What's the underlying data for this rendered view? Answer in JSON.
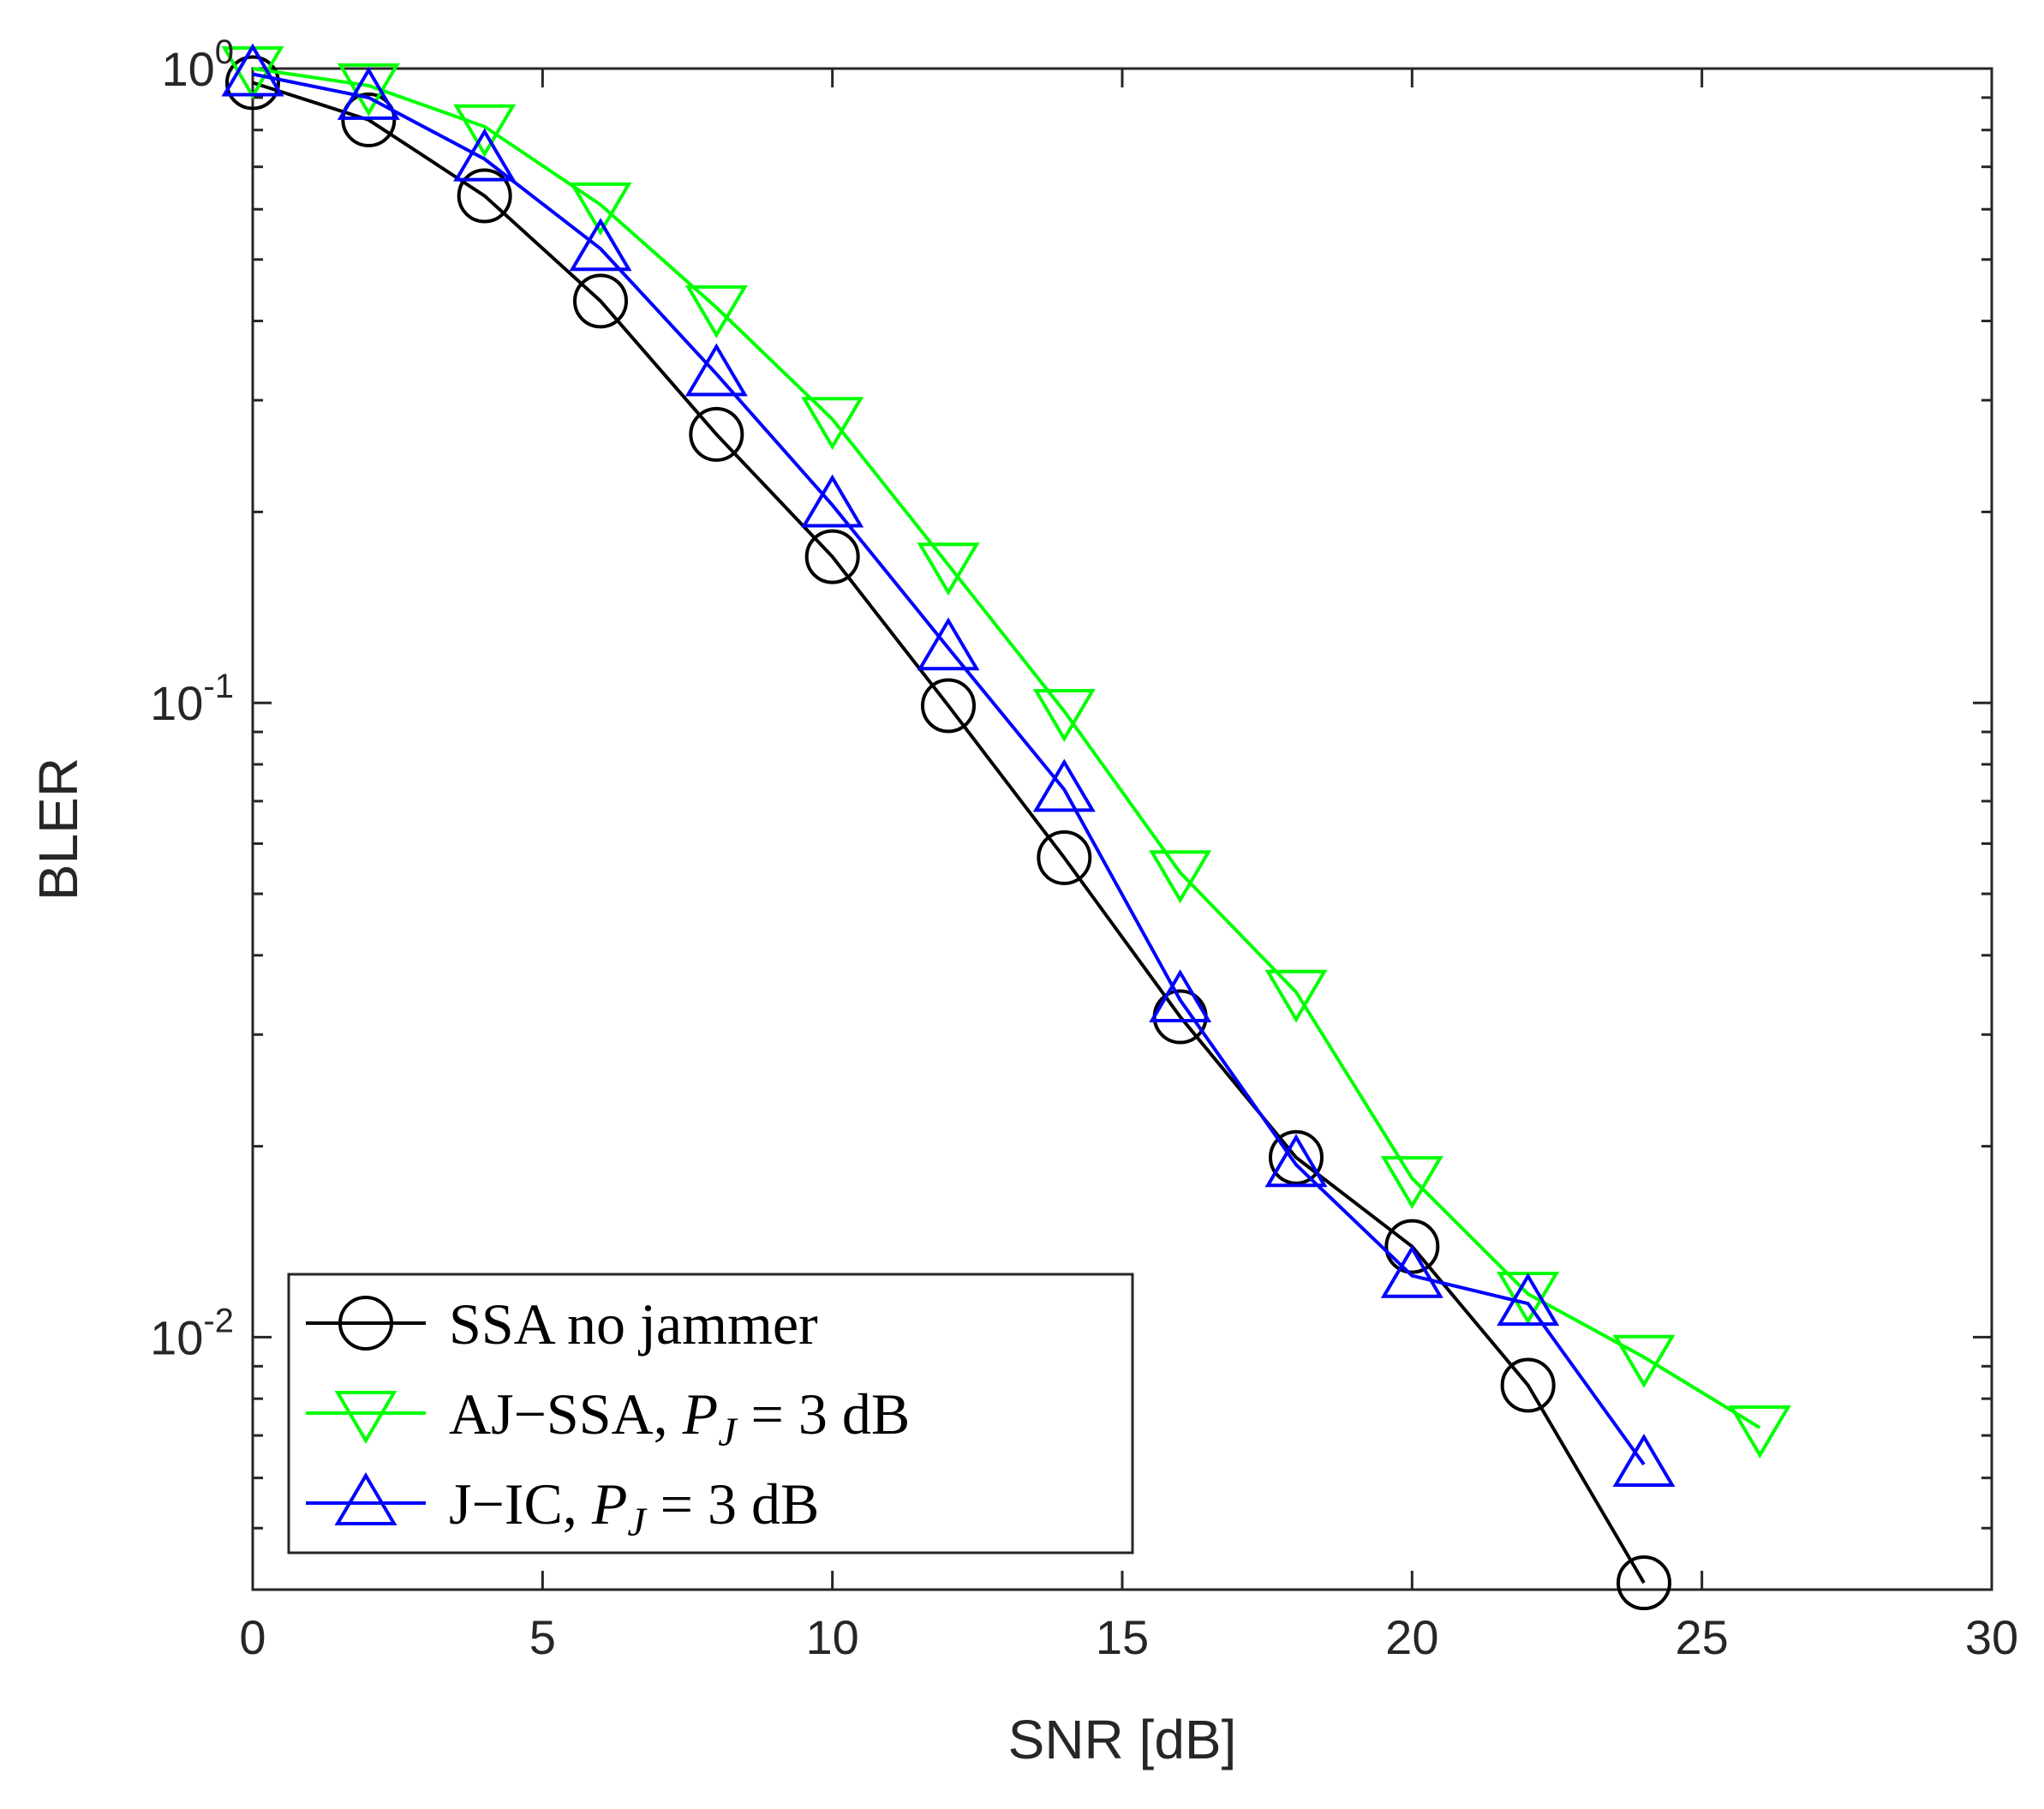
{
  "chart_data": {
    "type": "line",
    "xlabel": "SNR [dB]",
    "ylabel": "BLER",
    "yscale": "log",
    "xlim": [
      0,
      30
    ],
    "ylim": [
      0.004,
      1.0
    ],
    "xticks": [
      0,
      5,
      10,
      15,
      20,
      25,
      30
    ],
    "xtick_labels": [
      "0",
      "5",
      "10",
      "15",
      "20",
      "25",
      "30"
    ],
    "yticks": [
      {
        "base": "10",
        "exp": "0",
        "value": 1
      },
      {
        "base": "10",
        "exp": "-1",
        "value": 0.1
      },
      {
        "base": "10",
        "exp": "-2",
        "value": 0.01
      }
    ],
    "legend_position": "bottom-left",
    "series": [
      {
        "name": "SSA no jammer",
        "legend_parts": [
          {
            "text": "SSA no jammer",
            "italic": false
          }
        ],
        "color": "#000000",
        "marker": "circle",
        "x": [
          0,
          2,
          4,
          6,
          8,
          10,
          12,
          14,
          16,
          18,
          20,
          22,
          24
        ],
        "y": [
          0.95,
          0.83,
          0.63,
          0.43,
          0.265,
          0.17,
          0.099,
          0.057,
          0.032,
          0.0192,
          0.0139,
          0.0084,
          0.0041
        ]
      },
      {
        "name": "AJ-SSA, P_J = 3 dB",
        "legend_parts": [
          {
            "text": "AJ−SSA, ",
            "italic": false
          },
          {
            "text": "P",
            "italic": true
          },
          {
            "text": "J",
            "italic": true,
            "sub": true
          },
          {
            "text": " = 3 dB",
            "italic": false
          }
        ],
        "color": "#00ff00",
        "marker": "triangle-down",
        "x": [
          0,
          2,
          4,
          6,
          8,
          10,
          12,
          14,
          16,
          18,
          20,
          22,
          24,
          26
        ],
        "y": [
          1.0,
          0.94,
          0.81,
          0.61,
          0.42,
          0.28,
          0.165,
          0.097,
          0.054,
          0.035,
          0.0178,
          0.0117,
          0.0093,
          0.0072
        ]
      },
      {
        "name": "J-IC, P_J = 3 dB",
        "legend_parts": [
          {
            "text": "J−IC, ",
            "italic": false
          },
          {
            "text": "P",
            "italic": true
          },
          {
            "text": "J",
            "italic": true,
            "sub": true
          },
          {
            "text": " = 3 dB",
            "italic": false
          }
        ],
        "color": "#0000ff",
        "marker": "triangle-up",
        "x": [
          0,
          2,
          4,
          6,
          8,
          10,
          12,
          14,
          16,
          18,
          20,
          22,
          24
        ],
        "y": [
          0.98,
          0.9,
          0.72,
          0.52,
          0.33,
          0.205,
          0.122,
          0.073,
          0.034,
          0.0187,
          0.0125,
          0.0113,
          0.0063
        ]
      }
    ]
  }
}
